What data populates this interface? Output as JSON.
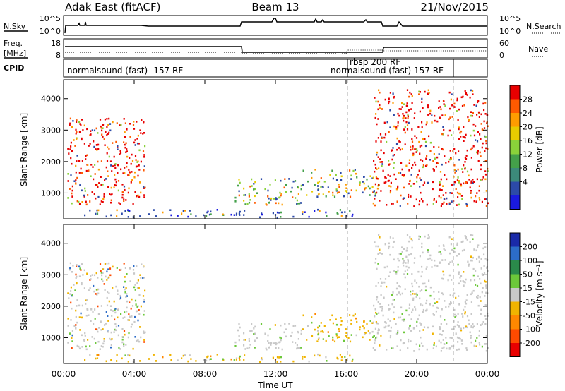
{
  "chart_data": {
    "type": "heatmap",
    "header": {
      "title": "Adak East (fitACF)",
      "beam": "Beam 13",
      "date": "21/Nov/2015"
    },
    "sky_panel": {
      "left_label": "N.Sky",
      "right_label": "N.Search",
      "left_ticks": [
        "10^5",
        "10^0"
      ],
      "right_ticks": [
        "10^5",
        "10^0"
      ]
    },
    "freq_panel": {
      "left_label_1": "Freq.",
      "left_label_2": "[MHz]",
      "right_label": "Nave",
      "left_ticks": [
        18,
        8
      ],
      "right_ticks": [
        60,
        0
      ]
    },
    "cpid_panel": {
      "label": "CPID",
      "segments": [
        {
          "text": "normalsound (fast) -157 RF",
          "start_h": 0
        },
        {
          "text": "rbsp 200 RF",
          "start_h": 16
        },
        {
          "text": "normalsound (fast) 157 RF",
          "start_h": 18
        }
      ]
    },
    "x_axis": {
      "label": "Time UT",
      "range_h": [
        0,
        24
      ],
      "ticks": [
        "00:00",
        "04:00",
        "08:00",
        "12:00",
        "16:00",
        "20:00",
        "00:00"
      ]
    },
    "panels": [
      {
        "name": "power",
        "ylabel": "Slant Range [km]",
        "yticks": [
          1000,
          2000,
          3000,
          4000
        ],
        "ylim": [
          180,
          4600
        ],
        "colorbar": {
          "label": "Power [dB]",
          "labels": [
            "28",
            "24",
            "20",
            "16",
            "12",
            "8",
            "4"
          ],
          "colors": [
            "#e80000",
            "#ff5a00",
            "#ff9c00",
            "#e8cc00",
            "#8ad23a",
            "#44a04a",
            "#3c8a7a",
            "#2c4aa8",
            "#1a1ae0"
          ]
        }
      },
      {
        "name": "velocity",
        "ylabel": "Slant Range [km]",
        "yticks": [
          1000,
          2000,
          3000,
          4000
        ],
        "ylim": [
          180,
          4600
        ],
        "colorbar": {
          "label": "Velocity [m s⁻¹]",
          "labels": [
            "200",
            "100",
            "50",
            "15",
            "-15",
            "-50",
            "-100",
            "-200"
          ],
          "colors": [
            "#1a2aa8",
            "#2c6cc8",
            "#2a8a4a",
            "#6cc83a",
            "#c8c8c8",
            "#f0b400",
            "#ff8800",
            "#ff4a00",
            "#e80000"
          ]
        }
      }
    ],
    "echo_regions": [
      {
        "t0": 0.2,
        "t1": 4.6,
        "r0": 650,
        "r1": 3400,
        "power": "high",
        "velocity": "mixed"
      },
      {
        "t0": 9.5,
        "t1": 13.5,
        "r0": 650,
        "r1": 1500,
        "power": "mid",
        "velocity": "gray"
      },
      {
        "t0": 13.5,
        "t1": 17.8,
        "r0": 900,
        "r1": 1800,
        "power": "mid",
        "velocity": "negative"
      },
      {
        "t0": 1.0,
        "t1": 17.0,
        "r0": 250,
        "r1": 500,
        "power": "low",
        "velocity": "negative"
      },
      {
        "t0": 17.5,
        "t1": 24.0,
        "r0": 600,
        "r1": 4300,
        "power": "high",
        "velocity": "gray"
      }
    ]
  }
}
